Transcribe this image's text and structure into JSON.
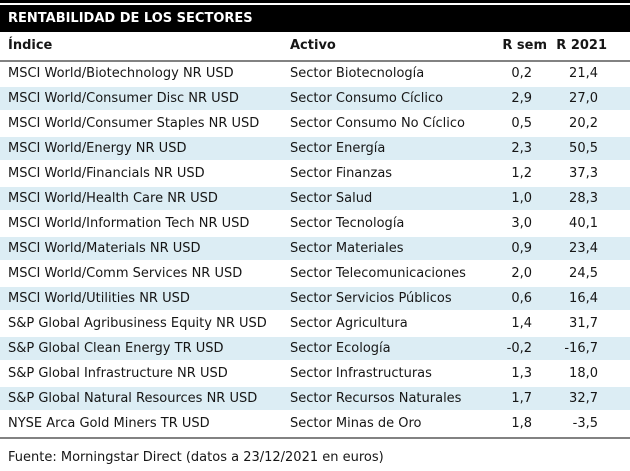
{
  "title": "RENTABILIDAD DE LOS SECTORES",
  "footer": "Fuente: Morningstar Direct (datos a 23/12/2021 en euros)",
  "colors": {
    "title_bg": "#000000",
    "title_text": "#ffffff",
    "row_alt_bg": "#dcedf4",
    "rule_gray": "#828282",
    "text": "#161616"
  },
  "chart_data": {
    "type": "table",
    "title": "RENTABILIDAD DE LOS SECTORES",
    "columns": [
      "Índice",
      "Activo",
      "R sem",
      "R 2021"
    ],
    "rows": [
      [
        "MSCI World/Biotechnology NR USD",
        "Sector Biotecnología",
        "0,2",
        "21,4"
      ],
      [
        "MSCI World/Consumer Disc NR USD",
        "Sector Consumo Cíclico",
        "2,9",
        "27,0"
      ],
      [
        "MSCI World/Consumer Staples NR USD",
        "Sector Consumo No Cíclico",
        "0,5",
        "20,2"
      ],
      [
        "MSCI World/Energy NR USD",
        "Sector Energía",
        "2,3",
        "50,5"
      ],
      [
        "MSCI World/Financials NR USD",
        "Sector Finanzas",
        "1,2",
        "37,3"
      ],
      [
        "MSCI World/Health Care NR USD",
        "Sector Salud",
        "1,0",
        "28,3"
      ],
      [
        "MSCI World/Information Tech NR USD",
        "Sector Tecnología",
        "3,0",
        "40,1"
      ],
      [
        "MSCI World/Materials NR USD",
        "Sector Materiales",
        "0,9",
        "23,4"
      ],
      [
        "MSCI World/Comm Services NR USD",
        "Sector Telecomunicaciones",
        "2,0",
        "24,5"
      ],
      [
        "MSCI World/Utilities NR USD",
        "Sector Servicios Públicos",
        "0,6",
        "16,4"
      ],
      [
        "S&P Global Agribusiness Equity NR USD",
        "Sector Agricultura",
        "1,4",
        "31,7"
      ],
      [
        "S&P Global Clean Energy TR USD",
        "Sector Ecología",
        "-0,2",
        "-16,7"
      ],
      [
        "S&P Global Infrastructure NR USD",
        "Sector Infrastructuras",
        "1,3",
        "18,0"
      ],
      [
        "S&P Global Natural Resources NR USD",
        "Sector Recursos Naturales",
        "1,7",
        "32,7"
      ],
      [
        "NYSE Arca Gold Miners TR USD",
        "Sector Minas de Oro",
        "1,8",
        "-3,5"
      ]
    ],
    "notes": "Alternating row shading (white / pale blue), numeric values use Spanish decimal commas"
  }
}
